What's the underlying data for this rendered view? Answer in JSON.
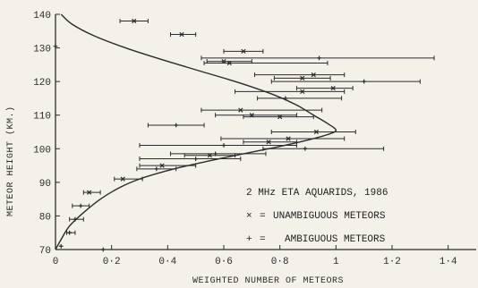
{
  "chart_data": {
    "type": "scatter",
    "xlabel": "WEIGHTED NUMBER OF METEORS",
    "ylabel": "METEOR HEIGHT (KM.)",
    "xlim": [
      0,
      1.5
    ],
    "ylim": [
      70,
      140
    ],
    "x_ticks": [
      0,
      0.2,
      0.4,
      0.6,
      0.8,
      1.0,
      1.2,
      1.4
    ],
    "x_tick_labels": [
      "0",
      "0·2",
      "0·4",
      "0·6",
      "0·8",
      "1",
      "1·2",
      "1·4"
    ],
    "y_ticks": [
      70,
      80,
      90,
      100,
      110,
      120,
      130,
      140
    ],
    "y_tick_labels": [
      "70",
      "80",
      "90",
      "100",
      "110",
      "120",
      "130",
      "140"
    ],
    "grid": false,
    "legend": {
      "title": "2 MHz ETA AQUARIDS, 1986",
      "entries": [
        {
          "symbol": "×",
          "label": "UNAMBIGUOUS METEORS"
        },
        {
          "symbol": "+",
          "label": "AMBIGUOUS METEORS"
        }
      ],
      "placement": "bottom-right"
    },
    "colors": {
      "ink": "#2b2b2b",
      "background": "#f4f1e9"
    },
    "series": [
      {
        "name": "UNAMBIGUOUS METEORS",
        "points": [
          {
            "y": 138,
            "x": 0.28,
            "xmin": 0.23,
            "xmax": 0.33
          },
          {
            "y": 134,
            "x": 0.45,
            "xmin": 0.41,
            "xmax": 0.5
          },
          {
            "y": 129,
            "x": 0.67,
            "xmin": 0.6,
            "xmax": 0.74
          },
          {
            "y": 126,
            "x": 0.6,
            "xmin": 0.54,
            "xmax": 0.7
          },
          {
            "y": 125.5,
            "x": 0.62,
            "xmin": 0.53,
            "xmax": 0.97
          },
          {
            "y": 122,
            "x": 0.92,
            "xmin": 0.71,
            "xmax": 1.03
          },
          {
            "y": 121,
            "x": 0.88,
            "xmin": 0.78,
            "xmax": 0.98
          },
          {
            "y": 118,
            "x": 0.99,
            "xmin": 0.86,
            "xmax": 1.06
          },
          {
            "y": 117,
            "x": 0.88,
            "xmin": 0.64,
            "xmax": 1.03
          },
          {
            "y": 111.5,
            "x": 0.66,
            "xmin": 0.52,
            "xmax": 0.95
          },
          {
            "y": 110,
            "x": 0.7,
            "xmin": 0.57,
            "xmax": 0.86
          },
          {
            "y": 109.5,
            "x": 0.8,
            "xmin": 0.67,
            "xmax": 0.92
          },
          {
            "y": 105,
            "x": 0.93,
            "xmin": 0.77,
            "xmax": 1.07
          },
          {
            "y": 103,
            "x": 0.83,
            "xmin": 0.59,
            "xmax": 1.03
          },
          {
            "y": 102,
            "x": 0.76,
            "xmin": 0.67,
            "xmax": 0.86
          },
          {
            "y": 98,
            "x": 0.55,
            "xmin": 0.46,
            "xmax": 0.64
          },
          {
            "y": 95,
            "x": 0.38,
            "xmin": 0.3,
            "xmax": 0.5
          },
          {
            "y": 91,
            "x": 0.24,
            "xmin": 0.21,
            "xmax": 0.31
          },
          {
            "y": 87,
            "x": 0.12,
            "xmin": 0.1,
            "xmax": 0.16
          }
        ]
      },
      {
        "name": "AMBIGUOUS METEORS",
        "points": [
          {
            "y": 130.5,
            "x": 0.0,
            "xmin": 0.0,
            "xmax": 0.0
          },
          {
            "y": 127,
            "x": 0.94,
            "xmin": 0.52,
            "xmax": 1.35
          },
          {
            "y": 120,
            "x": 1.1,
            "xmin": 0.77,
            "xmax": 1.3
          },
          {
            "y": 115,
            "x": 0.82,
            "xmin": 0.72,
            "xmax": 1.02
          },
          {
            "y": 107,
            "x": 0.43,
            "xmin": 0.33,
            "xmax": 0.53
          },
          {
            "y": 101,
            "x": 0.6,
            "xmin": 0.3,
            "xmax": 0.86
          },
          {
            "y": 100,
            "x": 0.89,
            "xmin": 0.74,
            "xmax": 1.17
          },
          {
            "y": 98.5,
            "x": 0.57,
            "xmin": 0.41,
            "xmax": 0.75
          },
          {
            "y": 97,
            "x": 0.5,
            "xmin": 0.3,
            "xmax": 0.66
          },
          {
            "y": 94,
            "x": 0.36,
            "xmin": 0.29,
            "xmax": 0.43
          },
          {
            "y": 83,
            "x": 0.09,
            "xmin": 0.06,
            "xmax": 0.12
          },
          {
            "y": 79,
            "x": 0.07,
            "xmin": 0.05,
            "xmax": 0.1
          },
          {
            "y": 75,
            "x": 0.05,
            "xmin": 0.04,
            "xmax": 0.07
          },
          {
            "y": 71,
            "x": 0.02,
            "xmin": 0.02,
            "xmax": 0.02
          },
          {
            "y": 70,
            "x": 0.17,
            "xmin": 0.17,
            "xmax": 0.17
          }
        ]
      }
    ],
    "fitted_curve": [
      {
        "x": 0.0,
        "y": 70
      },
      {
        "x": 0.02,
        "y": 73
      },
      {
        "x": 0.05,
        "y": 77
      },
      {
        "x": 0.1,
        "y": 81
      },
      {
        "x": 0.16,
        "y": 85
      },
      {
        "x": 0.23,
        "y": 88.5
      },
      {
        "x": 0.3,
        "y": 91
      },
      {
        "x": 0.4,
        "y": 93.5
      },
      {
        "x": 0.5,
        "y": 95.5
      },
      {
        "x": 0.6,
        "y": 97.3
      },
      {
        "x": 0.7,
        "y": 99
      },
      {
        "x": 0.8,
        "y": 100.7
      },
      {
        "x": 0.9,
        "y": 102.6
      },
      {
        "x": 0.97,
        "y": 104.2
      },
      {
        "x": 1.0,
        "y": 105.5
      },
      {
        "x": 0.97,
        "y": 107.5
      },
      {
        "x": 0.92,
        "y": 110
      },
      {
        "x": 0.86,
        "y": 113
      },
      {
        "x": 0.78,
        "y": 116
      },
      {
        "x": 0.66,
        "y": 119.5
      },
      {
        "x": 0.52,
        "y": 123
      },
      {
        "x": 0.38,
        "y": 126.5
      },
      {
        "x": 0.25,
        "y": 130
      },
      {
        "x": 0.14,
        "y": 133.5
      },
      {
        "x": 0.06,
        "y": 137
      },
      {
        "x": 0.02,
        "y": 140
      }
    ]
  }
}
